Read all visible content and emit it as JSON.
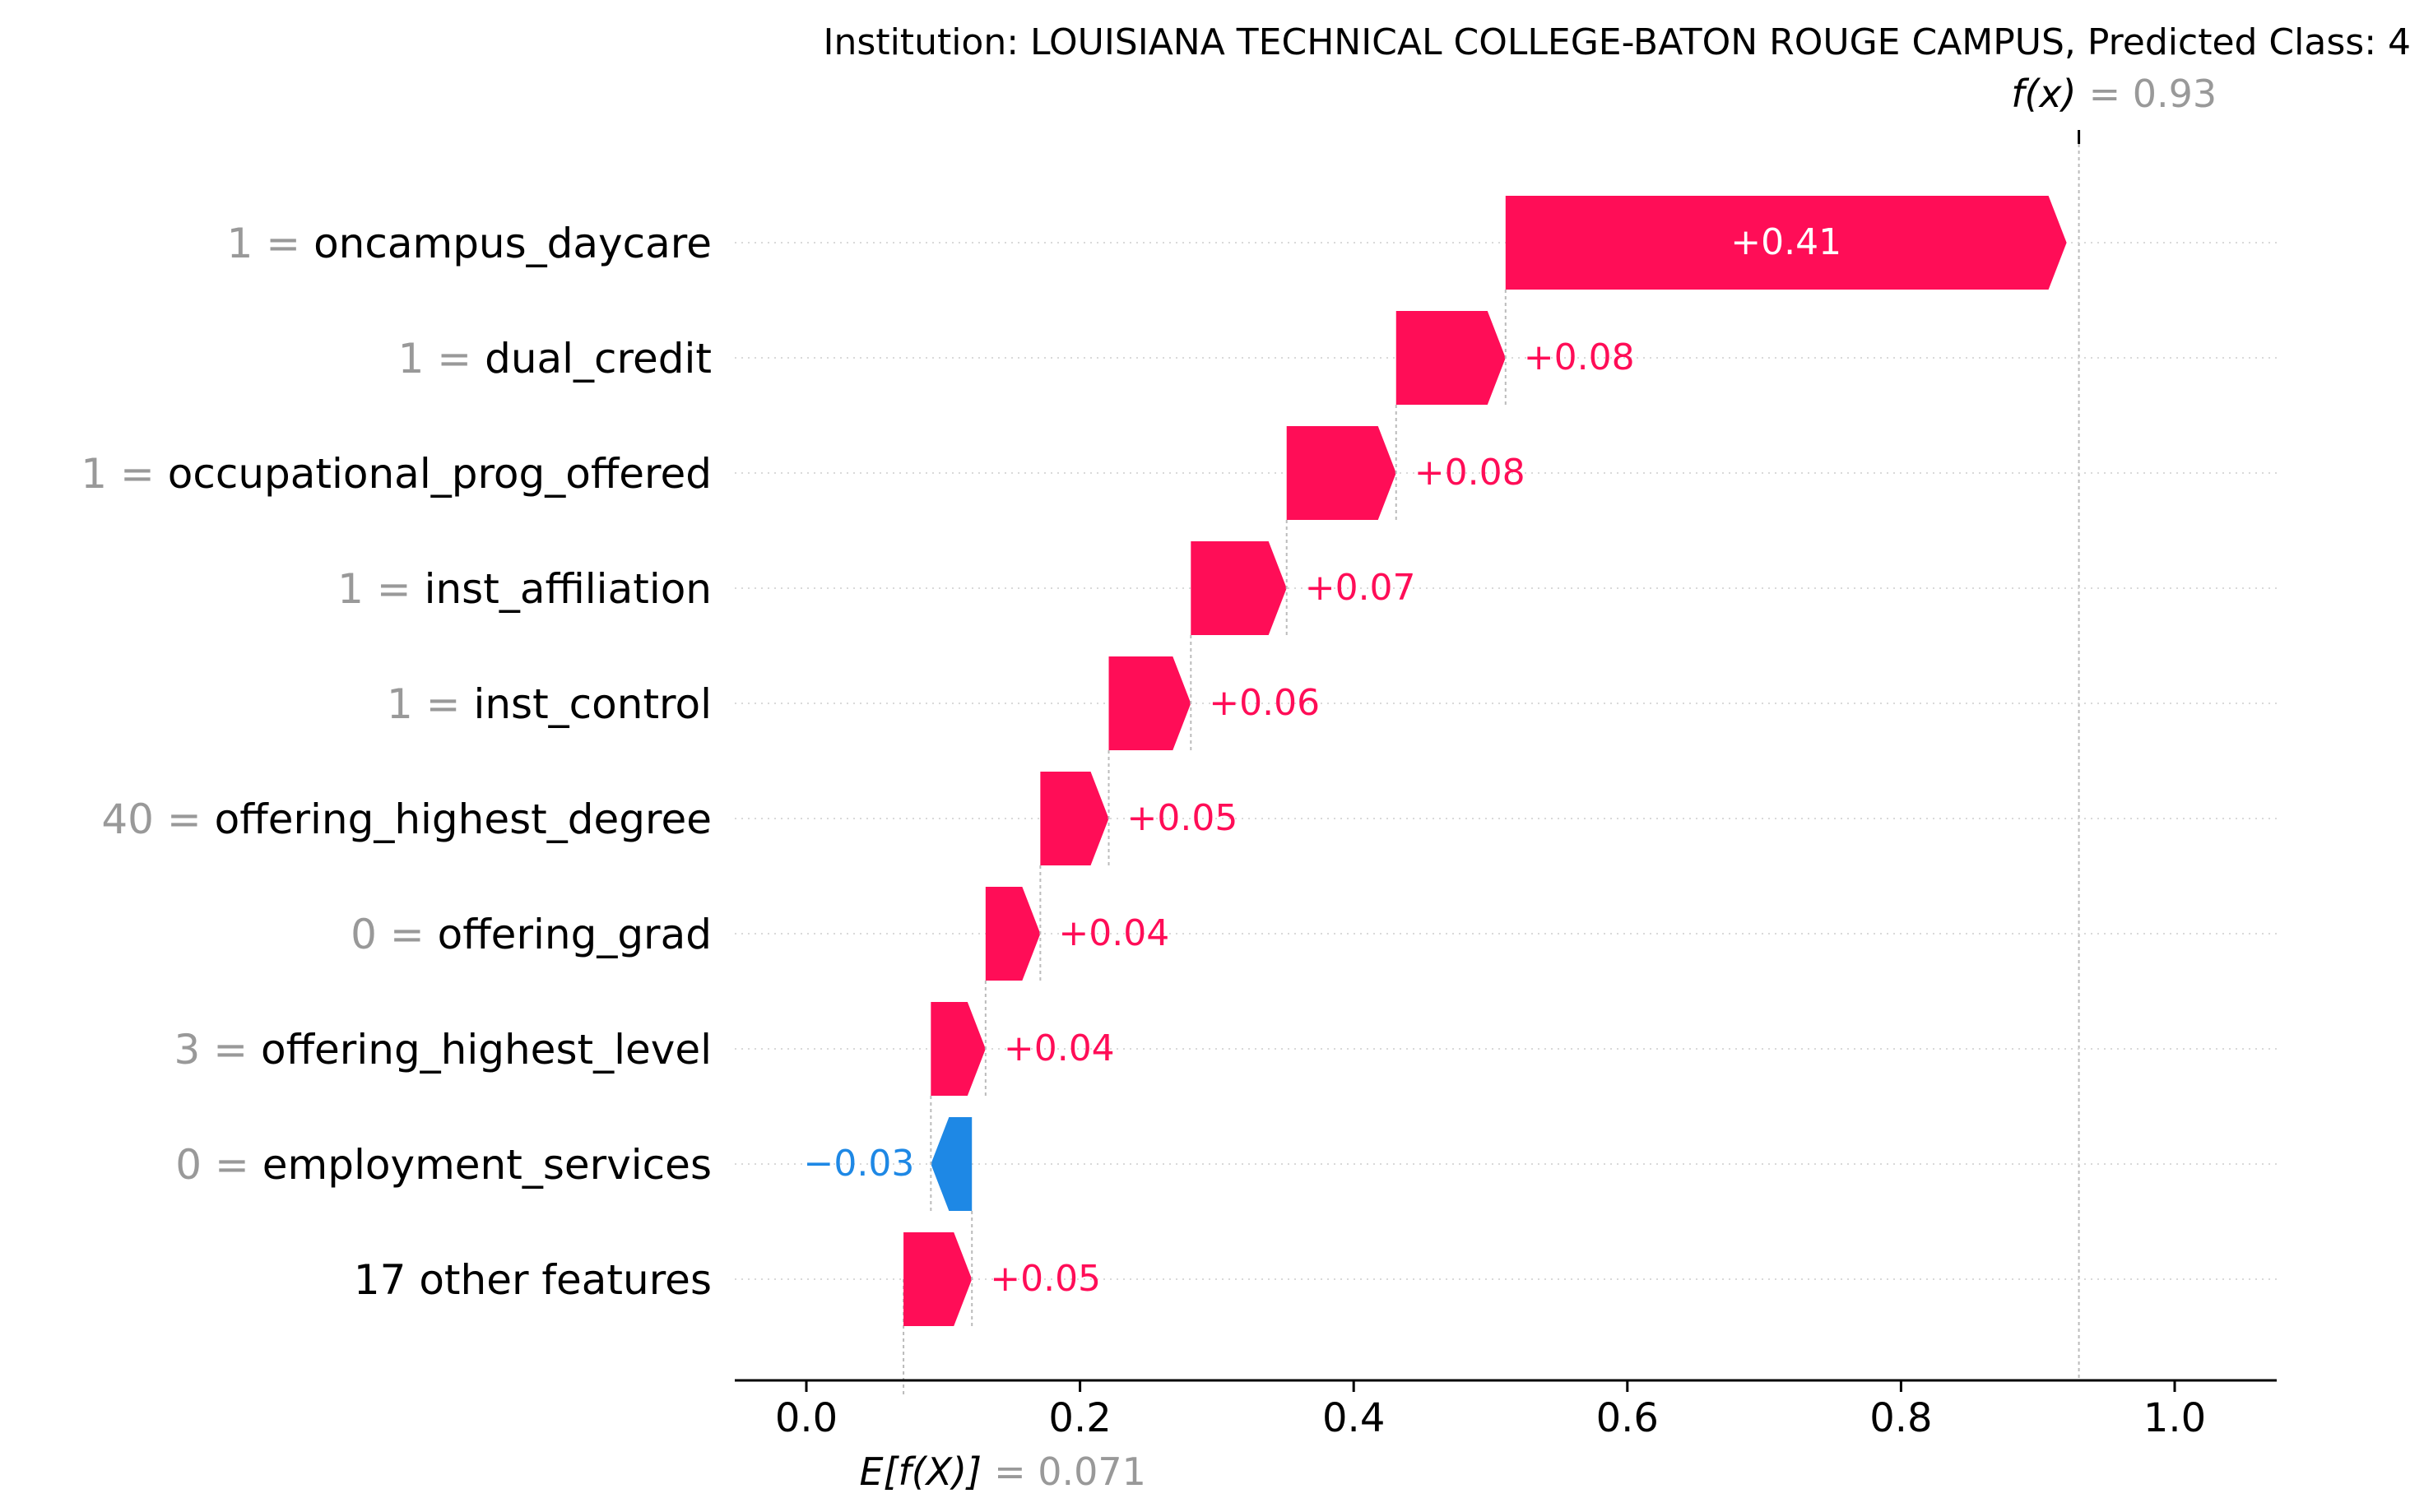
{
  "chart_data": {
    "type": "waterfall",
    "title": "Institution: LOUISIANA TECHNICAL COLLEGE-BATON ROUGE CAMPUS, Predicted Class: 4",
    "fx_label": "f(x)",
    "fx_value": "= 0.93",
    "fx": 0.93,
    "base_label": "E[f(X)]",
    "base_value_text": "= 0.071",
    "base_value": 0.071,
    "xlim": [
      -0.05,
      1.075
    ],
    "xticks": [
      {
        "value": 0.0,
        "label": "0.0"
      },
      {
        "value": 0.2,
        "label": "0.2"
      },
      {
        "value": 0.4,
        "label": "0.4"
      },
      {
        "value": 0.6,
        "label": "0.6"
      },
      {
        "value": 0.8,
        "label": "0.8"
      },
      {
        "value": 1.0,
        "label": "1.0"
      }
    ],
    "features": [
      {
        "value_label": "1 =",
        "name": "oncampus_daycare",
        "contribution": 0.41,
        "label": "+0.41"
      },
      {
        "value_label": "1 =",
        "name": "dual_credit",
        "contribution": 0.08,
        "label": "+0.08"
      },
      {
        "value_label": "1 =",
        "name": "occupational_prog_offered",
        "contribution": 0.08,
        "label": "+0.08"
      },
      {
        "value_label": "1 =",
        "name": "inst_affiliation",
        "contribution": 0.07,
        "label": "+0.07"
      },
      {
        "value_label": "1 =",
        "name": "inst_control",
        "contribution": 0.06,
        "label": "+0.06"
      },
      {
        "value_label": "40 =",
        "name": "offering_highest_degree",
        "contribution": 0.05,
        "label": "+0.05"
      },
      {
        "value_label": "0 =",
        "name": "offering_grad",
        "contribution": 0.04,
        "label": "+0.04"
      },
      {
        "value_label": "3 =",
        "name": "offering_highest_level",
        "contribution": 0.04,
        "label": "+0.04"
      },
      {
        "value_label": "0 =",
        "name": "employment_services",
        "contribution": -0.03,
        "label": "−0.03"
      },
      {
        "value_label": "",
        "name": "17 other features",
        "contribution": 0.05,
        "label": "+0.05"
      }
    ],
    "colors": {
      "positive": "#ff0d57",
      "negative": "#1e88e5",
      "label_on_bar": "#ffffff",
      "gray": "#999999"
    }
  }
}
